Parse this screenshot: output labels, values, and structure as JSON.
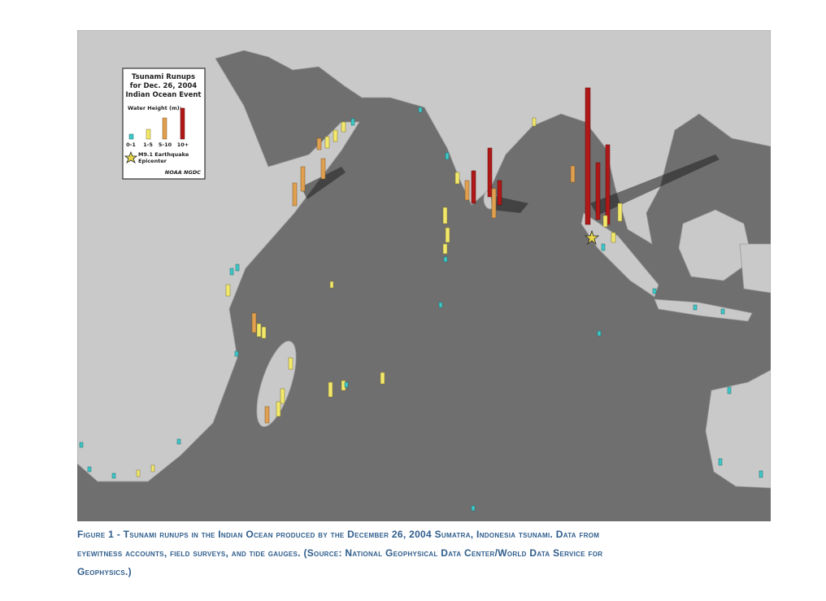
{
  "legend": {
    "title_lines": [
      "Tsunami Runups",
      "for Dec. 26, 2004",
      "Indian Ocean Event"
    ],
    "water_height_label": "Water Height (m):",
    "classes": [
      "0-1",
      "1-5",
      "5-10",
      "10+"
    ],
    "epicenter_lines": [
      "M9.1 Earthquake",
      "Epicenter"
    ],
    "credit": "NOAA NGDC"
  },
  "caption": {
    "lines": [
      "Figure 1 - Tsunami runups in the Indian Ocean produced by the December 26, 2004 Sumatra, Indonesia tsunami. Data from",
      "eyewitness accounts, field surveys, and tide gauges. (Source: National Geophysical Data Center/World Data Service for",
      "Geophysics.)"
    ]
  }
}
